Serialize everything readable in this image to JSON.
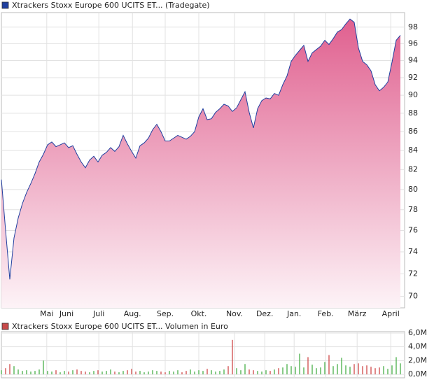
{
  "chart_data": [
    {
      "type": "area",
      "title": "Xtrackers Stoxx Europe 600 UCITS ET... (Tradegate)",
      "legend_color": "#1f3f9f",
      "color": "#2040a0",
      "fill_top": "#e0608f",
      "fill_bottom": "#fdf3f7",
      "log_scale": true,
      "grid": true,
      "values": [
        81.0,
        76.0,
        71.5,
        75.3,
        77.2,
        78.6,
        79.7,
        80.6,
        81.6,
        82.8,
        83.6,
        84.6,
        84.9,
        84.4,
        84.6,
        84.8,
        84.3,
        84.5,
        83.6,
        82.8,
        82.2,
        83.0,
        83.4,
        82.8,
        83.5,
        83.8,
        84.3,
        83.9,
        84.4,
        85.6,
        84.7,
        83.9,
        83.2,
        84.5,
        84.8,
        85.3,
        86.2,
        86.8,
        86.0,
        85.0,
        85.0,
        85.3,
        85.6,
        85.4,
        85.2,
        85.5,
        86.0,
        87.6,
        88.5,
        87.3,
        87.4,
        88.1,
        88.5,
        89.0,
        88.8,
        88.2,
        88.6,
        89.5,
        90.4,
        88.1,
        86.4,
        88.5,
        89.4,
        89.7,
        89.6,
        90.2,
        90.0,
        91.2,
        92.2,
        93.9,
        94.6,
        95.2,
        95.8,
        93.9,
        94.9,
        95.3,
        95.7,
        96.4,
        95.9,
        96.6,
        97.4,
        97.7,
        98.4,
        99.0,
        98.6,
        95.5,
        93.9,
        93.5,
        92.8,
        91.2,
        90.5,
        90.9,
        91.5,
        93.8,
        96.4,
        97.0
      ],
      "xlim": [
        0,
        96
      ],
      "xticks": [
        {
          "value": 10.8,
          "label": "Mai"
        },
        {
          "value": 15.5,
          "label": "Juni"
        },
        {
          "value": 23.2,
          "label": "Juli"
        },
        {
          "value": 31.2,
          "label": "Aug."
        },
        {
          "value": 39,
          "label": "Sep."
        },
        {
          "value": 47,
          "label": "Okt."
        },
        {
          "value": 55.5,
          "label": "Nov."
        },
        {
          "value": 62.7,
          "label": "Dez."
        },
        {
          "value": 69.7,
          "label": "Jan."
        },
        {
          "value": 77.2,
          "label": "Feb."
        },
        {
          "value": 84.7,
          "label": "März"
        },
        {
          "value": 92.7,
          "label": "April"
        }
      ],
      "ylim": [
        69,
        99.8
      ],
      "yticks": [
        70,
        72,
        74,
        76,
        78,
        80,
        82,
        84,
        86,
        88,
        90,
        92,
        94,
        96,
        98
      ]
    },
    {
      "type": "volume",
      "title": "Xtrackers Stoxx Europe 600 UCITS ET... Volumen in Euro",
      "legend_color": "#c84a4a",
      "up_color": "#3aa83a",
      "down_color": "#cc3a3a",
      "grid": true,
      "values": [
        600000,
        900000,
        1500000,
        1200000,
        700000,
        500000,
        600000,
        400000,
        500000,
        700000,
        2000000,
        500000,
        400000,
        600000,
        300000,
        500000,
        400000,
        600000,
        700000,
        500000,
        400000,
        300000,
        500000,
        600000,
        400000,
        500000,
        700000,
        400000,
        300000,
        500000,
        600000,
        800000,
        400000,
        500000,
        300000,
        400000,
        600000,
        500000,
        400000,
        300000,
        500000,
        400000,
        600000,
        300000,
        500000,
        700000,
        400000,
        600000,
        500000,
        800000,
        600000,
        400000,
        500000,
        700000,
        1200000,
        5000000,
        900000,
        600000,
        1500000,
        700000,
        600000,
        500000,
        400000,
        600000,
        500000,
        700000,
        900000,
        1000000,
        1500000,
        1200000,
        1100000,
        3000000,
        1000000,
        2500000,
        1400000,
        900000,
        1000000,
        1800000,
        2800000,
        1200000,
        1500000,
        2400000,
        1300000,
        1100000,
        1500000,
        1600000,
        1200000,
        1300000,
        1100000,
        900000,
        1000000,
        1200000,
        800000,
        1300000,
        2500000,
        1600000
      ],
      "ylim": [
        -500000,
        6200000
      ],
      "yticks": [
        {
          "value": 0,
          "label": "0,0M"
        },
        {
          "value": 2000000,
          "label": "2,0M"
        },
        {
          "value": 4000000,
          "label": "4,0M"
        },
        {
          "value": 6000000,
          "label": "6,0M"
        }
      ]
    }
  ]
}
